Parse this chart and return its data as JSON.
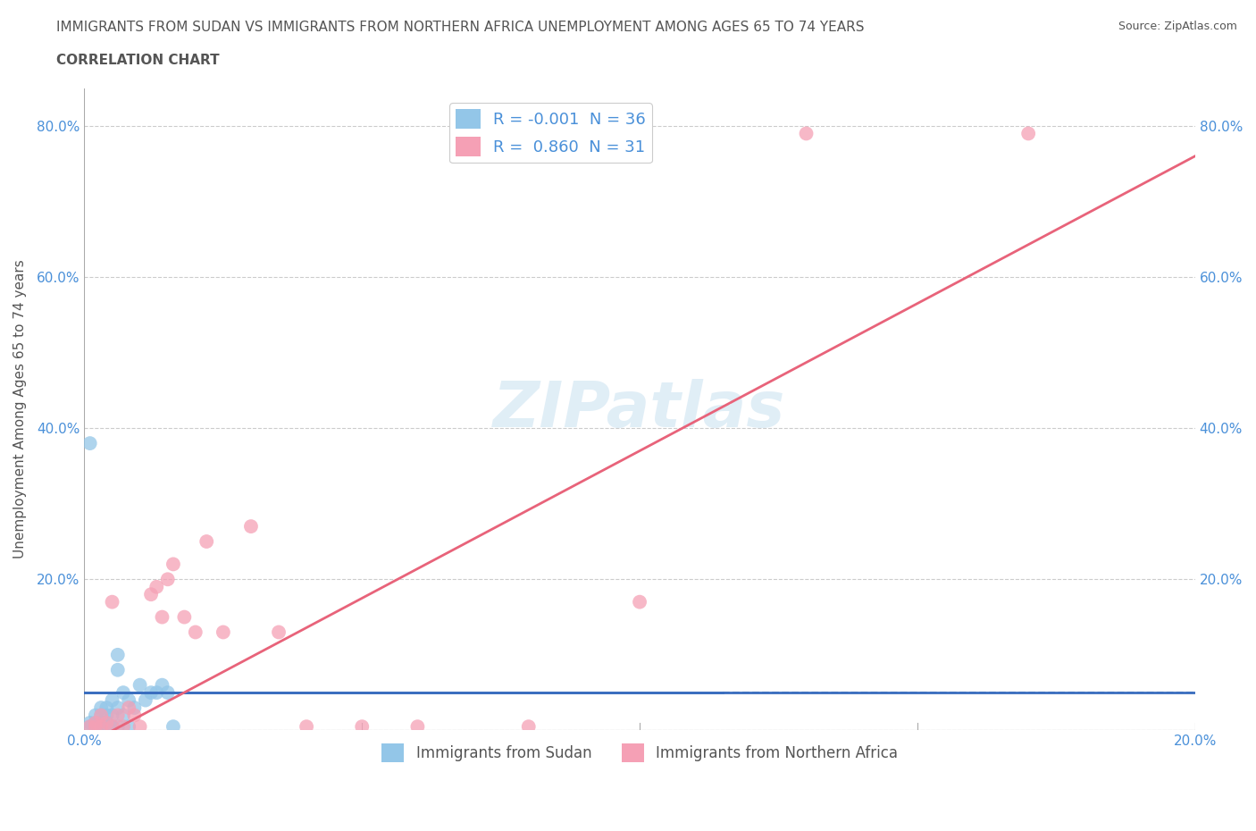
{
  "title_line1": "IMMIGRANTS FROM SUDAN VS IMMIGRANTS FROM NORTHERN AFRICA UNEMPLOYMENT AMONG AGES 65 TO 74 YEARS",
  "title_line2": "CORRELATION CHART",
  "source_text": "Source: ZipAtlas.com",
  "ylabel": "Unemployment Among Ages 65 to 74 years",
  "watermark": "ZIPatlas",
  "legend_blue_R": "R = -0.001",
  "legend_blue_N": "N = 36",
  "legend_pink_R": "R =  0.860",
  "legend_pink_N": "N = 31",
  "legend_blue_label": "Immigrants from Sudan",
  "legend_pink_label": "Immigrants from Northern Africa",
  "xlim": [
    0,
    0.2
  ],
  "ylim": [
    0,
    0.85
  ],
  "blue_color": "#93C6E8",
  "pink_color": "#F5A0B5",
  "blue_line_color": "#3A6EBF",
  "pink_line_color": "#E8637A",
  "grid_color": "#CCCCCC",
  "background_color": "#FFFFFF",
  "title_color": "#555555",
  "axis_color": "#4A90D9",
  "sudan_x": [
    0.001,
    0.001,
    0.002,
    0.002,
    0.002,
    0.003,
    0.003,
    0.003,
    0.003,
    0.004,
    0.004,
    0.004,
    0.004,
    0.005,
    0.005,
    0.005,
    0.006,
    0.006,
    0.006,
    0.007,
    0.007,
    0.008,
    0.009,
    0.01,
    0.011,
    0.012,
    0.013,
    0.014,
    0.015,
    0.001,
    0.002,
    0.003,
    0.005,
    0.006,
    0.008,
    0.016
  ],
  "sudan_y": [
    0.005,
    0.01,
    0.005,
    0.01,
    0.02,
    0.005,
    0.01,
    0.02,
    0.03,
    0.005,
    0.01,
    0.02,
    0.03,
    0.005,
    0.02,
    0.04,
    0.005,
    0.03,
    0.08,
    0.02,
    0.05,
    0.04,
    0.03,
    0.06,
    0.04,
    0.05,
    0.05,
    0.06,
    0.05,
    0.38,
    0.005,
    0.005,
    0.005,
    0.1,
    0.005,
    0.005
  ],
  "northafrica_x": [
    0.001,
    0.002,
    0.002,
    0.003,
    0.003,
    0.004,
    0.005,
    0.005,
    0.006,
    0.007,
    0.008,
    0.009,
    0.01,
    0.012,
    0.013,
    0.014,
    0.015,
    0.016,
    0.018,
    0.02,
    0.022,
    0.025,
    0.03,
    0.035,
    0.04,
    0.05,
    0.06,
    0.08,
    0.1,
    0.13,
    0.17
  ],
  "northafrica_y": [
    0.005,
    0.005,
    0.01,
    0.005,
    0.02,
    0.01,
    0.005,
    0.17,
    0.02,
    0.005,
    0.03,
    0.02,
    0.005,
    0.18,
    0.19,
    0.15,
    0.2,
    0.22,
    0.15,
    0.13,
    0.25,
    0.13,
    0.27,
    0.13,
    0.005,
    0.005,
    0.005,
    0.005,
    0.17,
    0.79,
    0.79
  ]
}
